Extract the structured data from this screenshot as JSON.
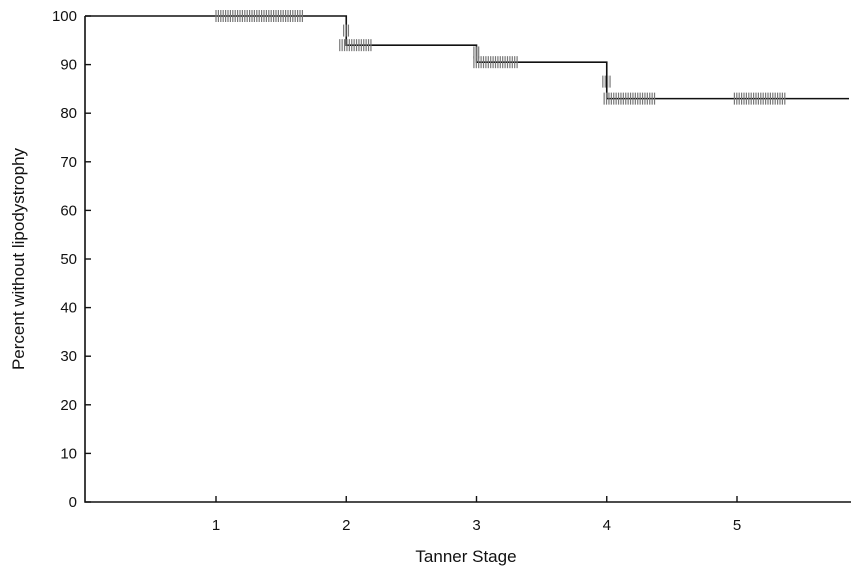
{
  "chart_data": {
    "type": "line",
    "title": "",
    "xlabel": "Tanner Stage",
    "ylabel": "Percent without lipodystrophy",
    "xlim": [
      0,
      5.9
    ],
    "ylim": [
      0,
      100
    ],
    "x_ticks": [
      1,
      2,
      3,
      4,
      5
    ],
    "y_ticks": [
      0,
      10,
      20,
      30,
      40,
      50,
      60,
      70,
      80,
      90,
      100
    ],
    "grid": false,
    "legend": "none",
    "series": [
      {
        "step": true,
        "x": [
          0,
          2.0,
          3.0,
          4.0,
          5.9
        ],
        "y": [
          100,
          94,
          90.5,
          83,
          83
        ]
      }
    ],
    "censor_marks": [
      {
        "x_start": 1.0,
        "x_end": 1.68,
        "y": 100
      },
      {
        "x_start": 1.95,
        "x_end": 2.2,
        "y": 94
      },
      {
        "x_start": 1.98,
        "x_end": 2.02,
        "y": 97
      },
      {
        "x_start": 2.98,
        "x_end": 3.32,
        "y": 90.5
      },
      {
        "x_start": 2.98,
        "x_end": 3.02,
        "y": 92.5
      },
      {
        "x_start": 3.98,
        "x_end": 4.38,
        "y": 83
      },
      {
        "x_start": 3.97,
        "x_end": 4.03,
        "y": 86.5
      },
      {
        "x_start": 4.98,
        "x_end": 5.38,
        "y": 83
      }
    ]
  }
}
